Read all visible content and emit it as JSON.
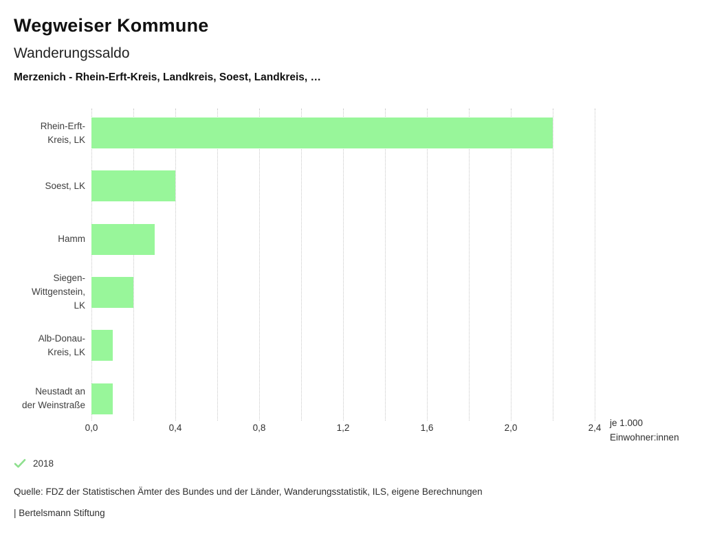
{
  "header": {
    "title": "Wegweiser Kommune",
    "subtitle": "Wanderungssaldo",
    "filter_line": "Merzenich - Rhein-Erft-Kreis, Landkreis, Soest, Landkreis, …"
  },
  "chart_data": {
    "type": "bar",
    "orientation": "horizontal",
    "title": "Wanderungssaldo",
    "categories": [
      "Rhein-Erft-Kreis, LK",
      "Soest, LK",
      "Hamm",
      "Siegen-Wittgenstein, LK",
      "Alb-Donau-Kreis, LK",
      "Neustadt an der Weinstraße"
    ],
    "category_lines": [
      [
        "Rhein-Erft-",
        "Kreis, LK"
      ],
      [
        "Soest, LK"
      ],
      [
        "Hamm"
      ],
      [
        "Siegen-",
        "Wittgenstein,",
        "LK"
      ],
      [
        "Alb-Donau-",
        "Kreis, LK"
      ],
      [
        "Neustadt an",
        "der Weinstraße"
      ]
    ],
    "series": [
      {
        "name": "2018",
        "values": [
          2.2,
          0.4,
          0.3,
          0.2,
          0.1,
          0.1
        ]
      }
    ],
    "xlim": [
      0,
      2.4
    ],
    "xtick_step": 0.4,
    "grid_step": 0.2,
    "grid": true,
    "xtick_labels": [
      "0,0",
      "0,4",
      "0,8",
      "1,2",
      "1,6",
      "2,0",
      "2,4"
    ],
    "x_unit_lines": [
      "je 1.000",
      "Einwohner:innen"
    ],
    "bar_color": "#98f69a",
    "gridline_color": "#c6c6c6",
    "legend_position": "bottom-left"
  },
  "legend": {
    "marker": "check-icon",
    "marker_color": "#8fe08f",
    "label": "2018"
  },
  "footer": {
    "source": "Quelle: FDZ der Statistischen Ämter des Bundes und der Länder, Wanderungsstatistik, ILS, eigene Berechnungen",
    "branding": "| Bertelsmann Stiftung"
  }
}
